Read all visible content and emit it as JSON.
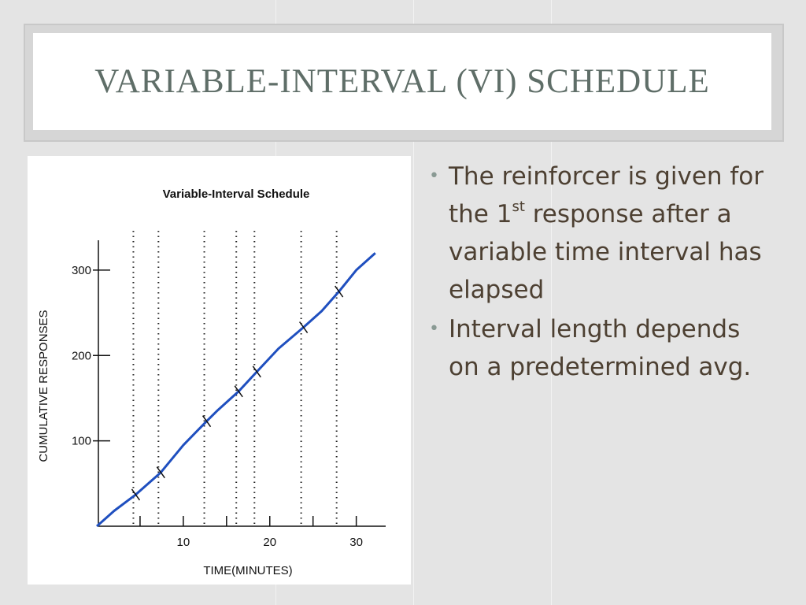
{
  "header": {
    "title": "VARIABLE-INTERVAL (VI) SCHEDULE"
  },
  "bullets": [
    {
      "text": "The reinforcer is given for the 1",
      "sup": "st",
      "text_after": " response after a variable time interval has elapsed"
    },
    {
      "text": "Interval length depends on a predetermined avg."
    }
  ],
  "chart_data": {
    "type": "line",
    "title": "Variable-Interval Schedule",
    "x_label": "TIME(MINUTES)",
    "y_label": "CUMULATIVE RESPONSES",
    "x": [
      0,
      2,
      4.5,
      7.4,
      10,
      12.7,
      14,
      16.4,
      18.5,
      21,
      23.9,
      26,
      28,
      30,
      32.2
    ],
    "values": [
      0,
      18,
      37,
      63,
      95,
      123,
      136,
      158,
      181,
      208,
      233,
      252,
      275,
      300,
      320
    ],
    "color": "#1f4fbf",
    "reinforcements": {
      "x": [
        4.5,
        7.4,
        12.7,
        16.4,
        18.5,
        23.9,
        28
      ],
      "values": [
        37,
        63,
        123,
        158,
        181,
        233,
        275
      ]
    },
    "xlim": [
      0,
      33.4
    ],
    "ylim": [
      0,
      335
    ],
    "xticks": [
      10,
      20,
      30
    ],
    "xminor_ticks": [
      5,
      15,
      25
    ],
    "yticks": [
      100,
      200,
      300
    ]
  }
}
